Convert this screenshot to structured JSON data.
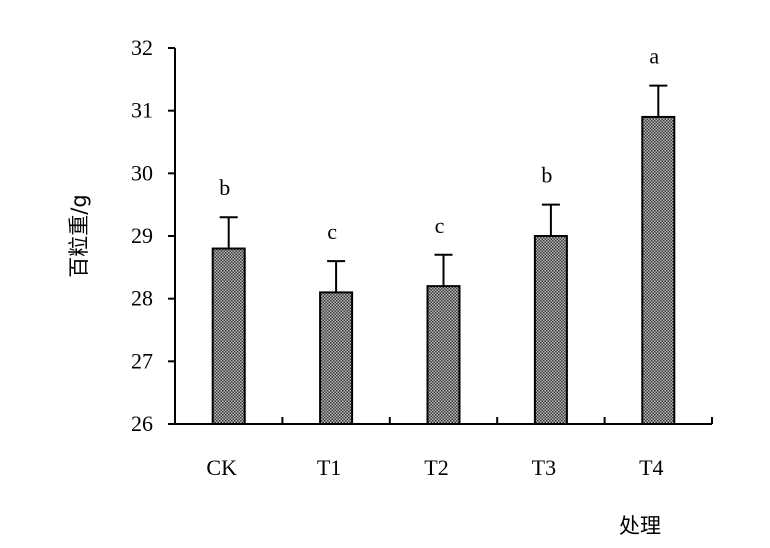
{
  "chart_data": {
    "type": "bar",
    "categories": [
      "CK",
      "T1",
      "T2",
      "T3",
      "T4"
    ],
    "values": [
      28.8,
      28.1,
      28.2,
      29.0,
      30.9
    ],
    "error_upper": [
      29.3,
      28.6,
      28.7,
      29.5,
      31.4
    ],
    "significance": [
      "b",
      "c",
      "c",
      "b",
      "a"
    ],
    "ylabel": "百粒重/g",
    "xlabel": "处理",
    "ylim": [
      26,
      32
    ],
    "yticks": [
      26,
      27,
      28,
      29,
      30,
      31,
      32
    ],
    "grid": false,
    "bar_fill": "#8a8a8a",
    "bar_stroke": "#000000"
  }
}
